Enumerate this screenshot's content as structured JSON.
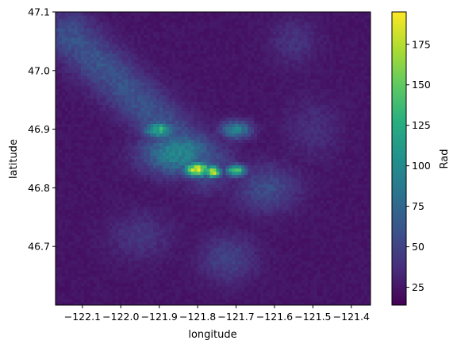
{
  "chart_data": {
    "type": "heatmap",
    "title": "",
    "xlabel": "longitude",
    "ylabel": "latitude",
    "colorbar_label": "Rad",
    "colormap": "viridis",
    "xlim": [
      -122.17,
      -121.35
    ],
    "ylim": [
      46.6,
      47.1
    ],
    "clim": [
      14,
      195
    ],
    "x_ticks": [
      -122.1,
      -122.0,
      -121.9,
      -121.8,
      -121.7,
      -121.6,
      -121.5,
      -121.4
    ],
    "x_tick_labels": [
      "−122.1",
      "−122.0",
      "−121.9",
      "−121.8",
      "−121.7",
      "−121.6",
      "−121.5",
      "−121.4"
    ],
    "y_ticks": [
      46.7,
      46.8,
      46.9,
      47.0,
      47.1
    ],
    "y_tick_labels": [
      "46.7",
      "46.8",
      "46.9",
      "47.0",
      "47.1"
    ],
    "colorbar_ticks": [
      25,
      50,
      75,
      100,
      125,
      150,
      175
    ],
    "colorbar_tick_labels": [
      "25",
      "50",
      "75",
      "100",
      "125",
      "150",
      "175"
    ],
    "background_level": 24,
    "features": [
      {
        "kind": "band",
        "from": [
          -122.13,
          47.06
        ],
        "to": [
          -121.78,
          46.84
        ],
        "width": 0.07,
        "value": 60
      },
      {
        "kind": "blob",
        "lon": -121.9,
        "lat": 46.9,
        "r_lon": 0.04,
        "r_lat": 0.015,
        "value": 125
      },
      {
        "kind": "blob",
        "lon": -121.8,
        "lat": 46.832,
        "r_lon": 0.035,
        "r_lat": 0.012,
        "value": 190
      },
      {
        "kind": "blob",
        "lon": -121.76,
        "lat": 46.828,
        "r_lon": 0.02,
        "r_lat": 0.01,
        "value": 185
      },
      {
        "kind": "blob",
        "lon": -121.7,
        "lat": 46.83,
        "r_lon": 0.025,
        "r_lat": 0.01,
        "value": 145
      },
      {
        "kind": "blob",
        "lon": -121.85,
        "lat": 46.86,
        "r_lon": 0.09,
        "r_lat": 0.035,
        "value": 100
      },
      {
        "kind": "blob",
        "lon": -121.7,
        "lat": 46.9,
        "r_lon": 0.04,
        "r_lat": 0.015,
        "value": 95
      },
      {
        "kind": "blob",
        "lon": -121.62,
        "lat": 46.8,
        "r_lon": 0.08,
        "r_lat": 0.04,
        "value": 55
      },
      {
        "kind": "blob",
        "lon": -121.72,
        "lat": 46.68,
        "r_lon": 0.07,
        "r_lat": 0.04,
        "value": 50
      },
      {
        "kind": "blob",
        "lon": -121.95,
        "lat": 46.72,
        "r_lon": 0.08,
        "r_lat": 0.04,
        "value": 42
      },
      {
        "kind": "blob",
        "lon": -121.55,
        "lat": 47.05,
        "r_lon": 0.06,
        "r_lat": 0.04,
        "value": 40
      },
      {
        "kind": "blob",
        "lon": -121.5,
        "lat": 46.9,
        "r_lon": 0.07,
        "r_lat": 0.05,
        "value": 38
      }
    ]
  }
}
